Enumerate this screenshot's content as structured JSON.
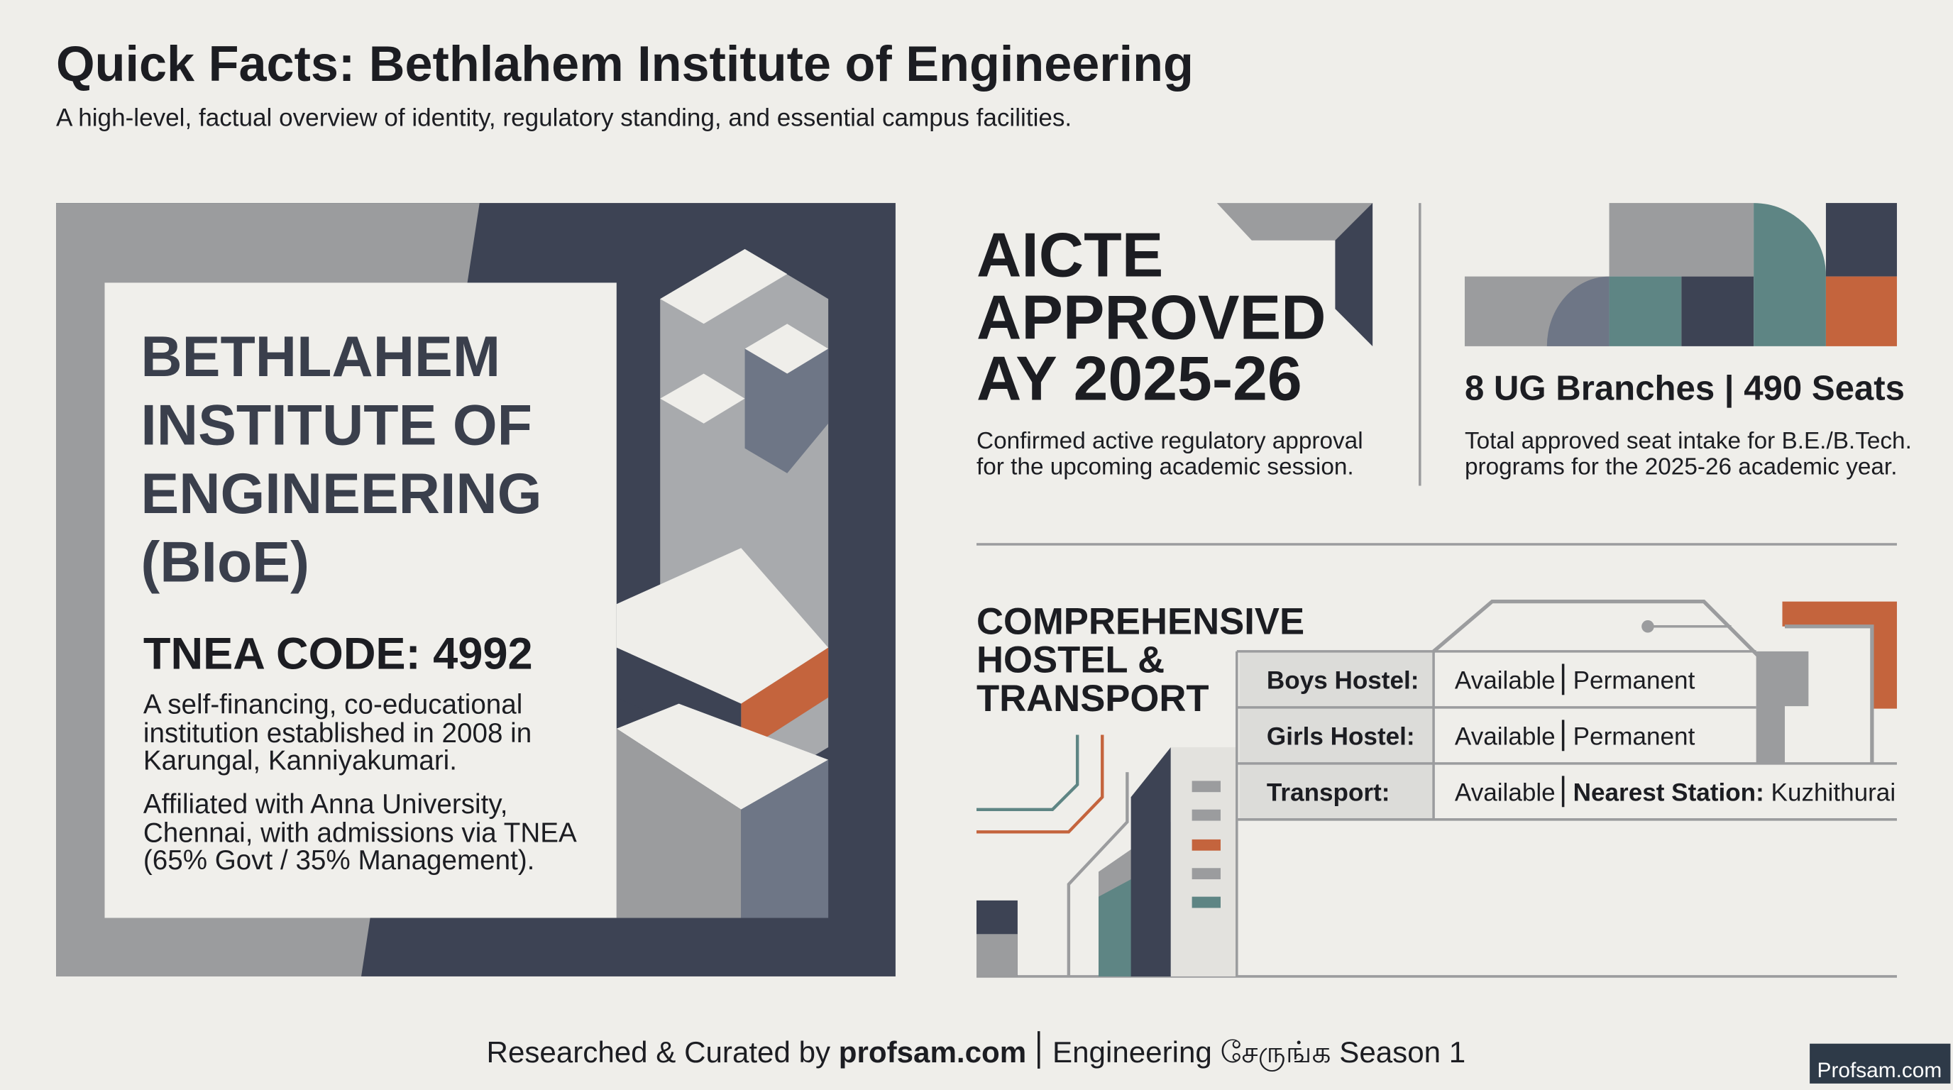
{
  "header": {
    "title": "Quick Facts: Bethlahem Institute of Engineering",
    "subtitle": "A high-level, factual overview of identity, regulatory standing, and essential campus facilities."
  },
  "institution": {
    "name_lines": [
      "BETHLAHEM",
      "INSTITUTE OF",
      "ENGINEERING",
      "(BIoE)"
    ],
    "tnea_code": "TNEA CODE: 4992",
    "paragraphs": [
      [
        "A self-financing, co-educational",
        "institution established in 2008 in",
        "Karungal, Kanniyakumari."
      ],
      [
        "Affiliated with Anna University,",
        "Chennai, with admissions via TNEA",
        "(65% Govt / 35% Management)."
      ]
    ]
  },
  "approval": {
    "heading_lines": [
      "AICTE",
      "APPROVED",
      "AY 2025-26"
    ],
    "description_lines": [
      "Confirmed active regulatory approval",
      "for the upcoming academic session."
    ]
  },
  "intake": {
    "heading": "8 UG Branches | 490 Seats",
    "description_lines": [
      "Total approved seat intake for B.E./B.Tech.",
      "programs for the 2025-26 academic year."
    ]
  },
  "facilities": {
    "heading_lines": [
      "COMPREHENSIVE",
      "HOSTEL &",
      "TRANSPORT"
    ],
    "rows": [
      {
        "label": "Boys Hostel:",
        "status": "Available",
        "detail": "Permanent"
      },
      {
        "label": "Girls Hostel:",
        "status": "Available",
        "detail": "Permanent"
      },
      {
        "label": "Transport:",
        "status": "Available",
        "detail_label": "Nearest Station:",
        "detail": "Kuzhithurai"
      }
    ]
  },
  "footer": {
    "prefix": "Researched & Curated by",
    "site": "profsam.com",
    "suffix": "Engineering சேருங்க Season 1",
    "badge": "Profsam.com"
  }
}
